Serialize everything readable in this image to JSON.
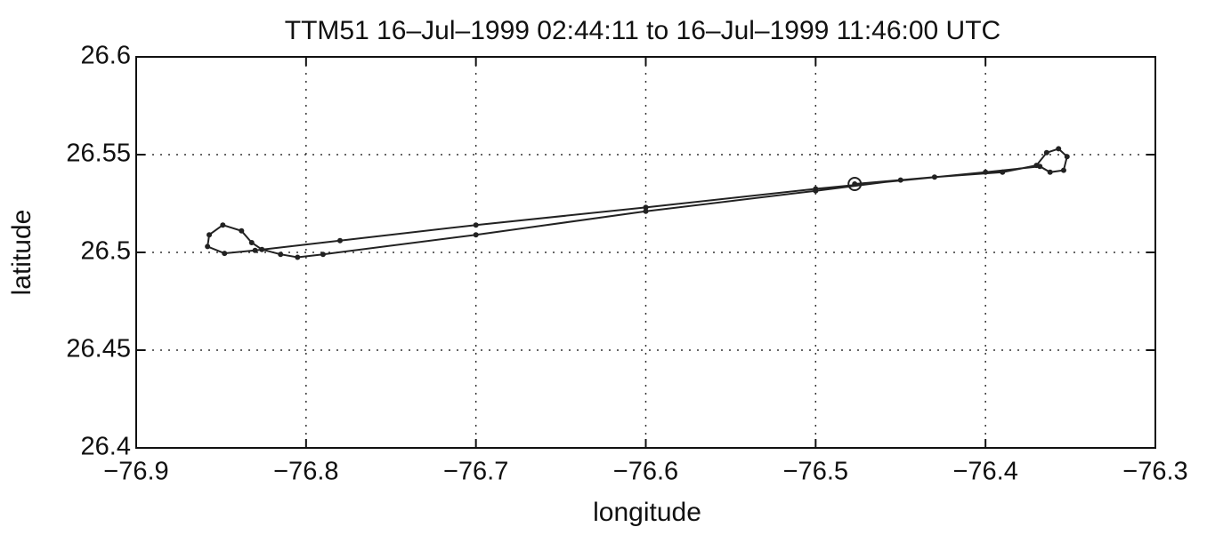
{
  "chart_data": {
    "type": "line",
    "title": "TTM51   16–Jul–1999 02:44:11 to 16–Jul–1999 11:46:00 UTC",
    "x_label": "longitude",
    "y_label": "latitude",
    "xlim": [
      -76.9,
      -76.3
    ],
    "ylim": [
      26.4,
      26.6
    ],
    "xticks": [
      {
        "value": -76.9,
        "label": "−76.9"
      },
      {
        "value": -76.8,
        "label": "−76.8"
      },
      {
        "value": -76.7,
        "label": "−76.7"
      },
      {
        "value": -76.6,
        "label": "−76.6"
      },
      {
        "value": -76.5,
        "label": "−76.5"
      },
      {
        "value": -76.4,
        "label": "−76.4"
      },
      {
        "value": -76.3,
        "label": "−76.3"
      }
    ],
    "yticks": [
      26.4,
      26.45,
      26.5,
      26.55,
      26.6
    ],
    "grid": true,
    "series": [
      {
        "color": "#222222",
        "x": [
          -76.477,
          -76.43,
          -76.39,
          -76.37,
          -76.364,
          -76.357,
          -76.352,
          -76.354,
          -76.362,
          -76.368,
          -76.4,
          -76.5,
          -76.6,
          -76.7,
          -76.78,
          -76.83,
          -76.848,
          -76.858,
          -76.857,
          -76.849,
          -76.838,
          -76.832,
          -76.826,
          -76.815,
          -76.805,
          -76.79,
          -76.7,
          -76.6,
          -76.5,
          -76.45
        ],
        "values": [
          26.535,
          26.5385,
          26.541,
          26.5445,
          26.551,
          26.553,
          26.549,
          26.542,
          26.541,
          26.544,
          26.541,
          26.5325,
          26.523,
          26.514,
          26.506,
          26.501,
          26.4995,
          26.503,
          26.509,
          26.514,
          26.511,
          26.505,
          26.5015,
          26.499,
          26.4975,
          26.499,
          26.509,
          26.521,
          26.5315,
          26.537
        ]
      }
    ],
    "start": {
      "x": -76.477,
      "y": 26.535,
      "color": "#222222"
    }
  }
}
